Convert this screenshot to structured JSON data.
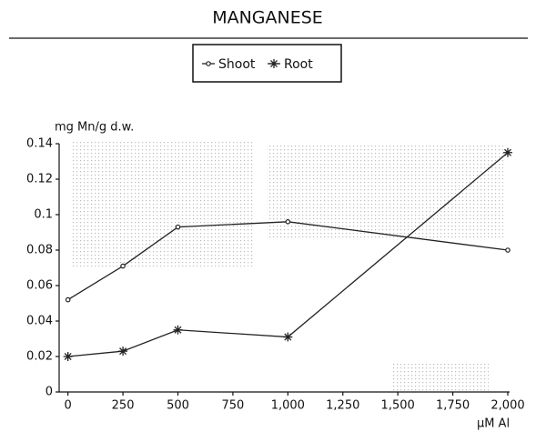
{
  "chart_data": {
    "type": "line",
    "title": "MANGANESE",
    "y_label": "mg Mn/g d.w.",
    "x_label": "μM Al",
    "x": [
      0,
      250,
      500,
      1000,
      2000
    ],
    "series": [
      {
        "name": "Shoot",
        "color": "#222222",
        "marker": "dot",
        "values": [
          0.052,
          0.071,
          0.093,
          0.096,
          0.08
        ]
      },
      {
        "name": "Root",
        "color": "#222222",
        "marker": "asterisk",
        "values": [
          0.02,
          0.023,
          0.035,
          0.031,
          0.135
        ]
      }
    ],
    "xlim": [
      -40,
      2000
    ],
    "xticks": [
      0,
      250,
      500,
      750,
      {
        "value": 1000,
        "label": "1,000"
      },
      {
        "value": 1250,
        "label": "1,250"
      },
      {
        "value": 1500,
        "label": "1,500"
      },
      {
        "value": 1750,
        "label": "1,750"
      },
      {
        "value": 2000,
        "label": "2,000"
      }
    ],
    "ylim": [
      0,
      0.14
    ],
    "yticks": [
      0,
      0.02,
      0.04,
      0.06,
      0.08,
      0.1,
      0.12,
      0.14
    ],
    "legend": "top"
  }
}
